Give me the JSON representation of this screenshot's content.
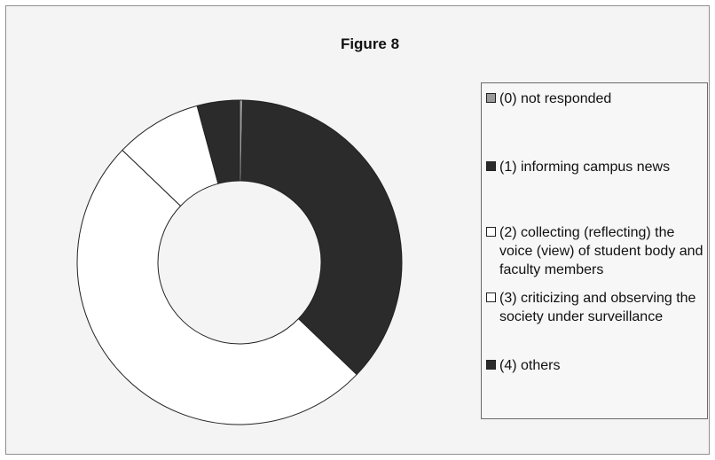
{
  "chart_data": {
    "type": "pie",
    "donut": true,
    "title": "Figure 8",
    "legend_position": "right",
    "categories": [
      "(0) not responded",
      "(1) informing campus news",
      "(2) collecting (reflecting) the voice (view) of student body and faculty members",
      "(3) criticizing and observing the society under surveillance",
      "(4) others"
    ],
    "values": [
      0.3,
      35,
      47.5,
      8.2,
      4
    ],
    "colors": [
      "#9a9a9a",
      "#2b2b2b",
      "#ffffff",
      "#ffffff",
      "#2b2b2b"
    ]
  }
}
